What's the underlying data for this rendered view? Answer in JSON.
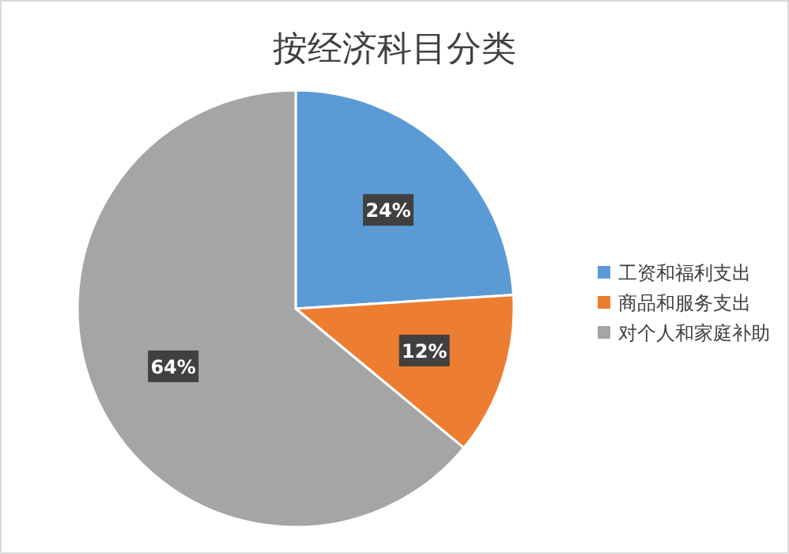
{
  "chart_data": {
    "type": "pie",
    "title": "按经济科目分类",
    "categories": [
      "工资和福利支出",
      "商品和服务支出",
      "对个人和家庭补助"
    ],
    "values": [
      24,
      12,
      64
    ],
    "value_labels": [
      "24%",
      "12%",
      "64%"
    ],
    "colors": [
      "#5b9bd5",
      "#ed7d31",
      "#a5a5a5"
    ],
    "legend": "right"
  }
}
